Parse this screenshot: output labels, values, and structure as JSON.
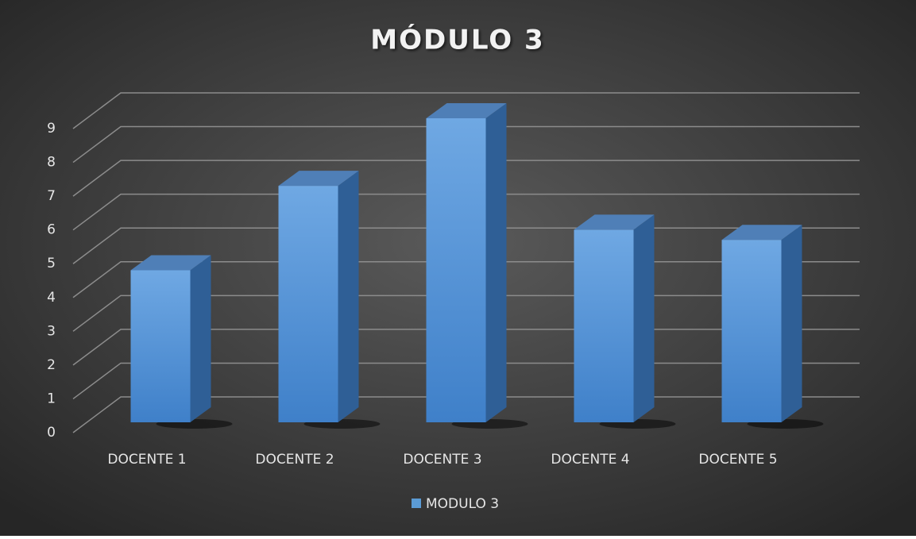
{
  "chart_data": {
    "type": "bar",
    "title": "MÓDULO 3",
    "categories": [
      "DOCENTE 1",
      "DOCENTE 2",
      "DOCENTE 3",
      "DOCENTE 4",
      "DOCENTE 5"
    ],
    "series": [
      {
        "name": "MODULO 3",
        "color": "#5b9bd5",
        "values": [
          4.5,
          7,
          9,
          5.7,
          5.4
        ]
      }
    ],
    "ylim": [
      0,
      9
    ],
    "yticks": [
      0,
      1,
      2,
      3,
      4,
      5,
      6,
      7,
      8,
      9
    ],
    "grid": true,
    "legend": "bottom"
  }
}
